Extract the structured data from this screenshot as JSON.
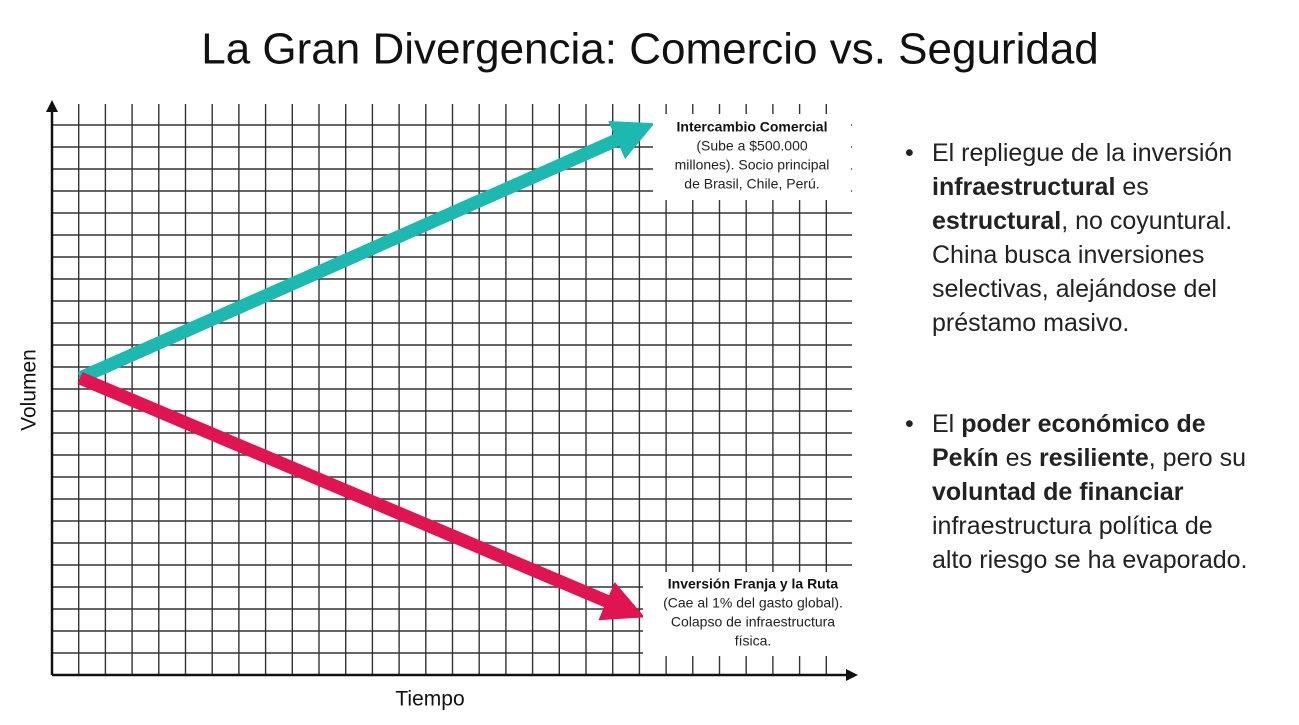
{
  "title": "La Gran Divergencia: Comercio vs. Seguridad",
  "y_axis_label": "Volumen",
  "x_axis_label": "Tiempo",
  "annotations": [
    {
      "title": "Intercambio Comercial",
      "lines": [
        "(Sube a $500.000",
        "millones). Socio principal",
        "de Brasil, Chile, Perú."
      ],
      "color": "#1db8b0"
    },
    {
      "title": "Inversión Franja y la Ruta",
      "lines": [
        "(Cae al 1% del gasto global).",
        "Colapso de infraestructura",
        "física."
      ],
      "color": "#df1450"
    }
  ],
  "bullets": [
    {
      "lines": [
        [
          {
            "text": "El repliegue de la inversión",
            "bold": false
          }
        ],
        [
          {
            "text": "infraestructural",
            "bold": true
          },
          {
            "text": " es",
            "bold": false
          }
        ],
        [
          {
            "text": "estructural",
            "bold": true
          },
          {
            "text": ", no coyuntural.",
            "bold": false
          }
        ],
        [
          {
            "text": "China busca inversiones",
            "bold": false
          }
        ],
        [
          {
            "text": "selectivas, alejándose del",
            "bold": false
          }
        ],
        [
          {
            "text": "préstamo masivo.",
            "bold": false
          }
        ]
      ]
    },
    {
      "lines": [
        [
          {
            "text": "El ",
            "bold": false
          },
          {
            "text": "poder económico de",
            "bold": true
          }
        ],
        [
          {
            "text": "Pekín",
            "bold": true
          },
          {
            "text": " es ",
            "bold": false
          },
          {
            "text": "resiliente",
            "bold": true
          },
          {
            "text": ", pero su",
            "bold": false
          }
        ],
        [
          {
            "text": "voluntad de financiar",
            "bold": true
          }
        ],
        [
          {
            "text": "infraestructura política de",
            "bold": false
          }
        ],
        [
          {
            "text": "alto riesgo se ha evaporado.",
            "bold": false
          }
        ]
      ]
    }
  ]
}
